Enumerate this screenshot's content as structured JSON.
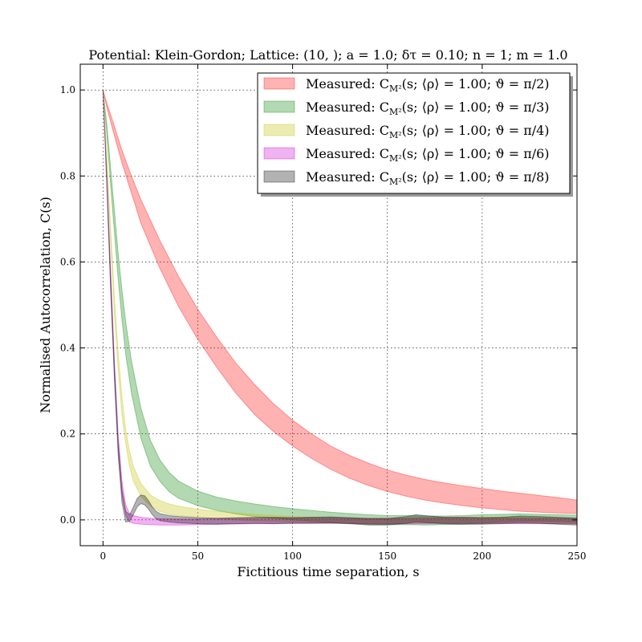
{
  "chart_data": {
    "type": "area",
    "title": "Potential: Klein-Gordon; Lattice: (10, ); a = 1.0; δτ = 0.10; n = 1; m = 1.0",
    "xlabel": "Fictitious time separation, s",
    "ylabel": "Normalised Autocorrelation, C(s)",
    "xlim": [
      -12,
      250
    ],
    "ylim": [
      -0.06,
      1.06
    ],
    "xticks": [
      0,
      50,
      100,
      150,
      200,
      250
    ],
    "yticks": [
      0.0,
      0.2,
      0.4,
      0.6,
      0.8,
      1.0
    ],
    "grid": true,
    "legend_position": "top-right",
    "series": [
      {
        "name": "Measured: C_M²(s; ⟨ρ⟩ = 1.00; ϑ = π/2)",
        "legend": "Measured: C_{M²}(s; ⟨ρ⟩ = 1.00; ϑ = π/2)",
        "color": "#ff0000",
        "x": [
          0,
          2,
          5,
          10,
          15,
          20,
          30,
          40,
          50,
          60,
          70,
          80,
          90,
          100,
          110,
          120,
          130,
          140,
          150,
          160,
          170,
          180,
          190,
          200,
          210,
          220,
          230,
          240,
          250
        ],
        "upper": [
          1.0,
          0.97,
          0.93,
          0.86,
          0.8,
          0.745,
          0.65,
          0.565,
          0.49,
          0.425,
          0.365,
          0.315,
          0.27,
          0.232,
          0.2,
          0.172,
          0.15,
          0.132,
          0.116,
          0.104,
          0.094,
          0.086,
          0.079,
          0.073,
          0.067,
          0.062,
          0.057,
          0.052,
          0.046
        ],
        "lower": [
          1.0,
          0.96,
          0.91,
          0.83,
          0.76,
          0.69,
          0.585,
          0.495,
          0.42,
          0.355,
          0.295,
          0.245,
          0.205,
          0.172,
          0.143,
          0.118,
          0.097,
          0.08,
          0.066,
          0.055,
          0.046,
          0.039,
          0.033,
          0.028,
          0.024,
          0.02,
          0.018,
          0.016,
          0.015
        ]
      },
      {
        "name": "Measured: C_M²(s; ⟨ρ⟩ = 1.00; ϑ = π/3)",
        "legend": "Measured: C_{M²}(s; ⟨ρ⟩ = 1.00; ϑ = π/3)",
        "color": "#008000",
        "x": [
          0,
          2,
          4,
          6,
          8,
          10,
          12,
          15,
          20,
          25,
          30,
          35,
          40,
          50,
          60,
          70,
          80,
          90,
          100,
          110,
          120,
          130,
          140,
          150,
          160,
          170,
          180,
          190,
          200,
          210,
          220,
          230,
          240,
          250
        ],
        "upper": [
          1.0,
          0.92,
          0.82,
          0.72,
          0.62,
          0.535,
          0.46,
          0.37,
          0.26,
          0.185,
          0.14,
          0.11,
          0.09,
          0.067,
          0.053,
          0.044,
          0.037,
          0.031,
          0.026,
          0.022,
          0.018,
          0.015,
          0.012,
          0.01,
          0.01,
          0.009,
          0.009,
          0.01,
          0.012,
          0.013,
          0.014,
          0.013,
          0.012,
          0.011
        ],
        "lower": [
          1.0,
          0.9,
          0.78,
          0.67,
          0.56,
          0.465,
          0.385,
          0.295,
          0.19,
          0.125,
          0.09,
          0.065,
          0.05,
          0.033,
          0.022,
          0.014,
          0.008,
          0.004,
          0.0,
          -0.003,
          -0.006,
          -0.008,
          -0.01,
          -0.011,
          -0.011,
          -0.012,
          -0.011,
          -0.01,
          -0.008,
          -0.005,
          -0.003,
          -0.003,
          -0.004,
          -0.005
        ]
      },
      {
        "name": "Measured: C_M²(s; ⟨ρ⟩ = 1.00; ϑ = π/4)",
        "legend": "Measured: C_{M²}(s; ⟨ρ⟩ = 1.00; ϑ = π/4)",
        "color": "#bfbf00",
        "x": [
          0,
          2,
          4,
          6,
          8,
          10,
          12,
          14,
          16,
          20,
          25,
          30,
          35,
          40,
          50,
          60,
          70,
          80,
          100,
          120,
          140,
          160,
          180,
          200,
          220,
          240,
          250
        ],
        "upper": [
          1.0,
          0.85,
          0.68,
          0.52,
          0.39,
          0.285,
          0.21,
          0.16,
          0.125,
          0.085,
          0.058,
          0.045,
          0.037,
          0.032,
          0.025,
          0.02,
          0.016,
          0.013,
          0.008,
          0.004,
          0.003,
          0.004,
          0.005,
          0.006,
          0.006,
          0.005,
          0.004
        ],
        "lower": [
          1.0,
          0.83,
          0.65,
          0.48,
          0.35,
          0.245,
          0.175,
          0.125,
          0.09,
          0.055,
          0.032,
          0.02,
          0.013,
          0.01,
          0.006,
          0.003,
          0.0,
          -0.002,
          -0.005,
          -0.007,
          -0.008,
          -0.007,
          -0.006,
          -0.006,
          -0.007,
          -0.008,
          -0.008
        ]
      },
      {
        "name": "Measured: C_M²(s; ⟨ρ⟩ = 1.00; ϑ = π/6)",
        "legend": "Measured: C_{M²}(s; ⟨ρ⟩ = 1.00; ϑ = π/6)",
        "color": "#cc00cc",
        "x": [
          0,
          2,
          4,
          6,
          8,
          10,
          12,
          14,
          16,
          20,
          25,
          30,
          40,
          50,
          60,
          80,
          100,
          120,
          140,
          160,
          180,
          200,
          220,
          240,
          250
        ],
        "upper": [
          1.0,
          0.8,
          0.58,
          0.37,
          0.2,
          0.09,
          0.035,
          0.015,
          0.01,
          0.006,
          0.004,
          0.003,
          0.002,
          0.002,
          0.003,
          0.004,
          0.005,
          0.005,
          0.004,
          0.004,
          0.005,
          0.005,
          0.004,
          0.004,
          0.004
        ],
        "lower": [
          1.0,
          0.78,
          0.55,
          0.34,
          0.17,
          0.06,
          0.01,
          -0.005,
          -0.008,
          -0.01,
          -0.011,
          -0.012,
          -0.012,
          -0.011,
          -0.01,
          -0.009,
          -0.008,
          -0.008,
          -0.009,
          -0.009,
          -0.008,
          -0.008,
          -0.009,
          -0.009,
          -0.009
        ]
      },
      {
        "name": "Measured: C_M²(s; ⟨ρ⟩ = 1.00; ϑ = π/8)",
        "legend": "Measured: C_{M²}(s; ⟨ρ⟩ = 1.00; ϑ = π/8)",
        "color": "#000000",
        "x": [
          0,
          2,
          4,
          6,
          8,
          10,
          12,
          14,
          16,
          18,
          20,
          22,
          24,
          26,
          28,
          30,
          35,
          40,
          50,
          60,
          70,
          80,
          90,
          100,
          110,
          120,
          130,
          140,
          150,
          160,
          165,
          170,
          180,
          190,
          200,
          210,
          220,
          230,
          240,
          250
        ],
        "upper": [
          1.0,
          0.8,
          0.57,
          0.36,
          0.18,
          0.07,
          0.02,
          0.012,
          0.03,
          0.05,
          0.058,
          0.056,
          0.045,
          0.03,
          0.02,
          0.015,
          0.01,
          0.008,
          0.005,
          0.004,
          0.005,
          0.006,
          0.006,
          0.005,
          0.006,
          0.007,
          0.005,
          0.003,
          0.003,
          0.008,
          0.012,
          0.01,
          0.006,
          0.006,
          0.005,
          0.006,
          0.009,
          0.008,
          0.006,
          0.004
        ],
        "lower": [
          1.0,
          0.78,
          0.54,
          0.33,
          0.15,
          0.04,
          -0.005,
          -0.003,
          0.012,
          0.03,
          0.038,
          0.035,
          0.025,
          0.012,
          0.003,
          -0.002,
          -0.005,
          -0.007,
          -0.009,
          -0.01,
          -0.009,
          -0.008,
          -0.009,
          -0.008,
          -0.008,
          -0.007,
          -0.009,
          -0.012,
          -0.012,
          -0.008,
          -0.005,
          -0.006,
          -0.009,
          -0.01,
          -0.01,
          -0.009,
          -0.007,
          -0.008,
          -0.01,
          -0.012
        ]
      }
    ]
  }
}
